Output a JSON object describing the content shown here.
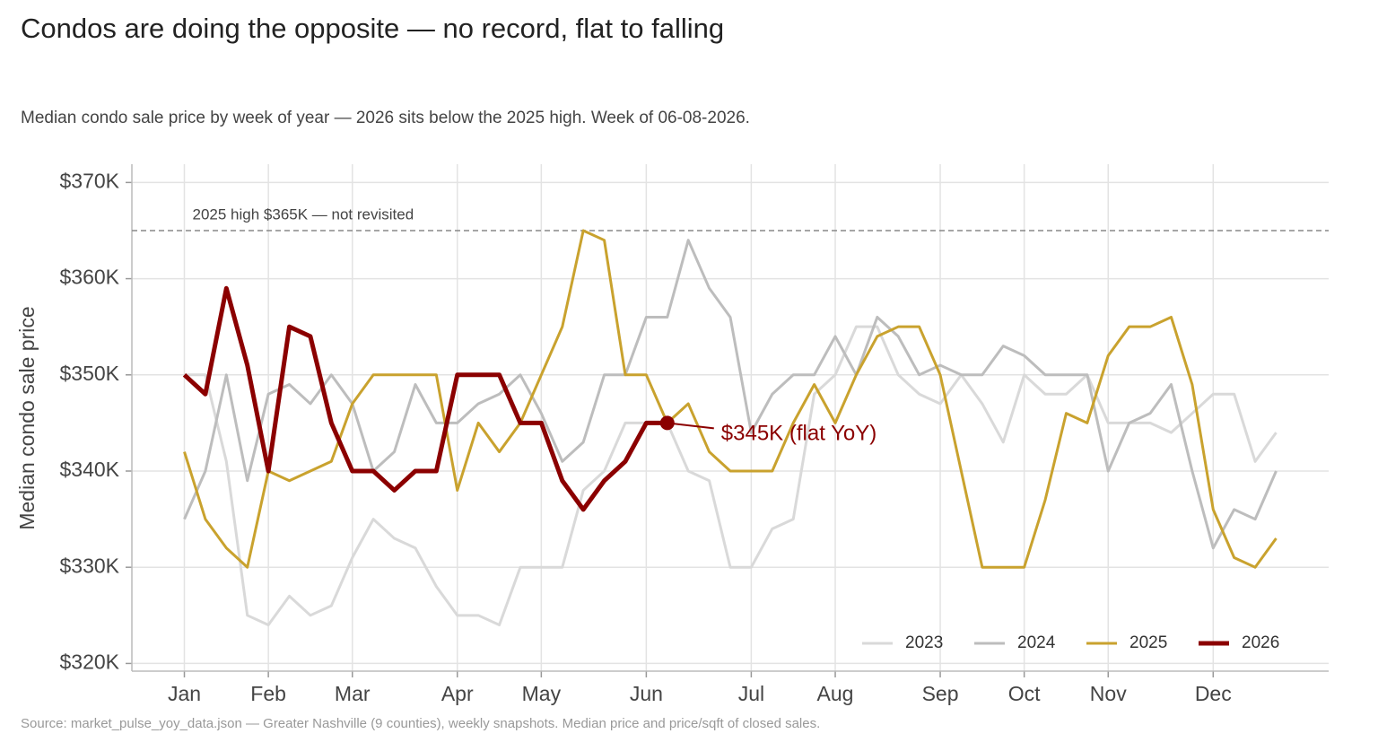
{
  "chart_data": {
    "type": "line",
    "title": "Condos are doing the opposite — no record, flat to falling",
    "subtitle": "Median condo sale price by week of year — 2026 sits below the 2025 high. Week of 06-08-2026.",
    "y_label": "Median condo sale price",
    "source": "Source: market_pulse_yoy_data.json — Greater Nashville (9 counties), weekly snapshots. Median price and price/sqft of closed sales.",
    "x": [
      1,
      2,
      3,
      4,
      5,
      6,
      7,
      8,
      9,
      10,
      11,
      12,
      13,
      14,
      15,
      16,
      17,
      18,
      19,
      20,
      21,
      22,
      23,
      24,
      25,
      26,
      27,
      28,
      29,
      30,
      31,
      32,
      33,
      34,
      35,
      36,
      37,
      38,
      39,
      40,
      41,
      42,
      43,
      44,
      45,
      46,
      47,
      48,
      49,
      50,
      51,
      52,
      53
    ],
    "xlim": [
      -1.5,
      55.5
    ],
    "xticks": [
      {
        "value": 1,
        "label": "Jan"
      },
      {
        "value": 5,
        "label": "Feb"
      },
      {
        "value": 9,
        "label": "Mar"
      },
      {
        "value": 14,
        "label": "Apr"
      },
      {
        "value": 18,
        "label": "May"
      },
      {
        "value": 23,
        "label": "Jun"
      },
      {
        "value": 28,
        "label": "Jul"
      },
      {
        "value": 32,
        "label": "Aug"
      },
      {
        "value": 37,
        "label": "Sep"
      },
      {
        "value": 41,
        "label": "Oct"
      },
      {
        "value": 45,
        "label": "Nov"
      },
      {
        "value": 50,
        "label": "Dec"
      }
    ],
    "ylim": [
      319.2,
      371.9
    ],
    "yticks": [
      {
        "value": 320,
        "label": "$320K"
      },
      {
        "value": 330,
        "label": "$330K"
      },
      {
        "value": 340,
        "label": "$340K"
      },
      {
        "value": 350,
        "label": "$350K"
      },
      {
        "value": 360,
        "label": "$360K"
      },
      {
        "value": 370,
        "label": "$370K"
      }
    ],
    "grid": true,
    "legend": "lower right",
    "series": [
      {
        "name": "2023",
        "color": "#d9d9d9",
        "values": [
          350,
          350,
          341,
          325,
          324,
          327,
          325,
          326,
          331,
          335,
          333,
          332,
          328,
          325,
          325,
          324,
          330,
          330,
          330,
          338,
          340,
          345,
          345,
          345,
          340,
          339,
          330,
          330,
          334,
          335,
          348,
          350,
          355,
          355,
          350,
          348,
          347,
          350,
          347,
          343,
          350,
          348,
          348,
          350,
          345,
          345,
          345,
          344,
          346,
          348,
          348,
          341,
          344
        ]
      },
      {
        "name": "2024",
        "color": "#bdbdbd",
        "values": [
          335,
          340,
          350,
          339,
          348,
          349,
          347,
          350,
          347,
          340,
          342,
          349,
          345,
          345,
          347,
          348,
          350,
          346,
          341,
          343,
          350,
          350,
          356,
          356,
          364,
          359,
          356,
          344,
          348,
          350,
          350,
          354,
          350,
          356,
          354,
          350,
          351,
          350,
          350,
          353,
          352,
          350,
          350,
          350,
          340,
          345,
          346,
          349,
          340,
          332,
          336,
          335,
          340
        ]
      },
      {
        "name": "2025",
        "color": "#c9a22e",
        "values": [
          342,
          335,
          332,
          330,
          340,
          339,
          340,
          341,
          347,
          350,
          350,
          350,
          350,
          338,
          345,
          342,
          345,
          350,
          355,
          365,
          364,
          350,
          350,
          345,
          347,
          342,
          340,
          340,
          340,
          345,
          349,
          345,
          350,
          354,
          355,
          355,
          350,
          340,
          330,
          330,
          330,
          337,
          346,
          345,
          352,
          355,
          355,
          356,
          349,
          336,
          331,
          330,
          333
        ]
      },
      {
        "name": "2026",
        "color": "#8b0000",
        "values": [
          350,
          348,
          359,
          351,
          340,
          355,
          354,
          345,
          340,
          340,
          338,
          340,
          340,
          350,
          350,
          350,
          345,
          345,
          339,
          336,
          339,
          341,
          345,
          345,
          null,
          null,
          null,
          null,
          null,
          null,
          null,
          null,
          null,
          null,
          null,
          null,
          null,
          null,
          null,
          null,
          null,
          null,
          null,
          null,
          null,
          null,
          null,
          null,
          null,
          null,
          null,
          null,
          null
        ]
      }
    ],
    "reference_line": {
      "value": 365,
      "label": "2025 high $365K — not revisited"
    },
    "annotation": {
      "text": "$345K  (flat YoY)"
    }
  }
}
